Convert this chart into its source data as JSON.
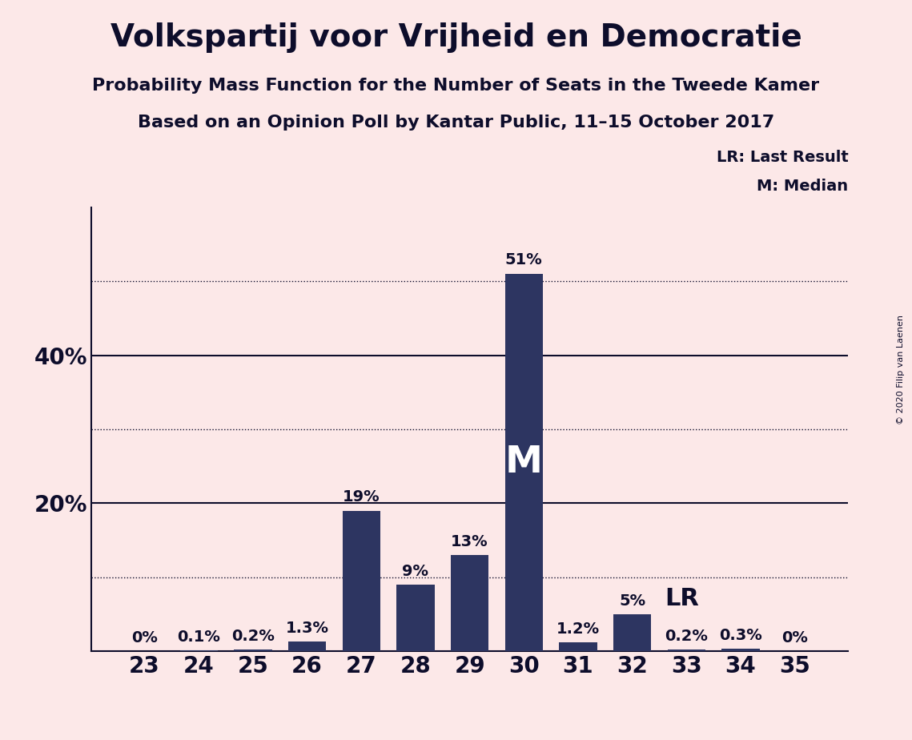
{
  "title": "Volkspartij voor Vrijheid en Democratie",
  "subtitle1": "Probability Mass Function for the Number of Seats in the Tweede Kamer",
  "subtitle2": "Based on an Opinion Poll by Kantar Public, 11–15 October 2017",
  "copyright": "© 2020 Filip van Laenen",
  "categories": [
    23,
    24,
    25,
    26,
    27,
    28,
    29,
    30,
    31,
    32,
    33,
    34,
    35
  ],
  "values": [
    0.0,
    0.1,
    0.2,
    1.3,
    19.0,
    9.0,
    13.0,
    51.0,
    1.2,
    5.0,
    0.2,
    0.3,
    0.0
  ],
  "bar_labels": [
    "0%",
    "0.1%",
    "0.2%",
    "1.3%",
    "19%",
    "9%",
    "13%",
    "51%",
    "1.2%",
    "5%",
    "0.2%",
    "0.3%",
    "0%"
  ],
  "bar_color": "#2d3561",
  "background_color": "#fce8e8",
  "title_color": "#0d0d2b",
  "median_bar_index": 7,
  "lr_bar_index": 9,
  "ylim": [
    0,
    60
  ],
  "solid_gridlines": [
    20,
    40
  ],
  "dotted_gridlines": [
    10,
    30,
    50
  ],
  "ylabel_ticks": [
    20,
    40
  ],
  "title_fontsize": 28,
  "subtitle_fontsize": 16,
  "axis_label_fontsize": 20,
  "bar_label_fontsize": 14,
  "legend_fontsize": 14
}
